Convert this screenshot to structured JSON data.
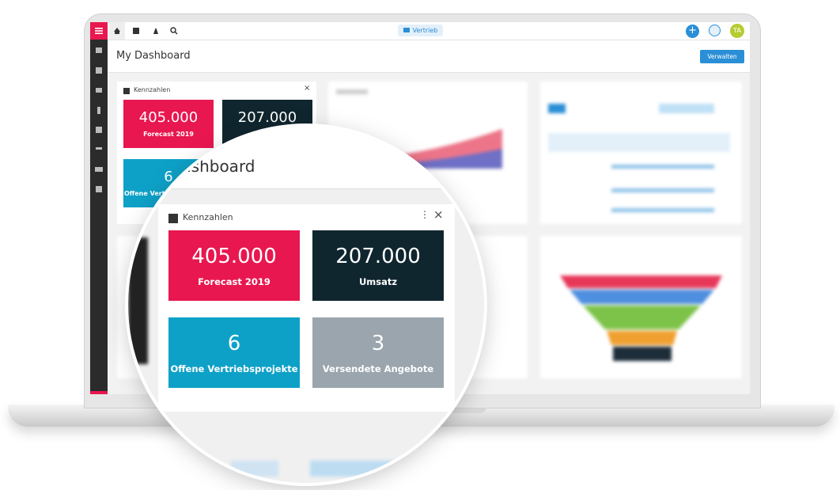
{
  "topbar": {
    "context": "Vertrieb",
    "avatar": "TA"
  },
  "header": {
    "title": "My Dashboard",
    "button": "Verwalten"
  },
  "widget": {
    "title": "Kennzahlen",
    "tiles": [
      {
        "value": "405.000",
        "label": "Forecast 2019"
      },
      {
        "value": "207.000",
        "label": "Umsatz"
      },
      {
        "value": "6",
        "label": "Offene Vertriebsprojekte"
      },
      {
        "value": "3",
        "label": "Versendete Angebote"
      }
    ]
  },
  "magnifier": {
    "title": "Dashboard"
  }
}
